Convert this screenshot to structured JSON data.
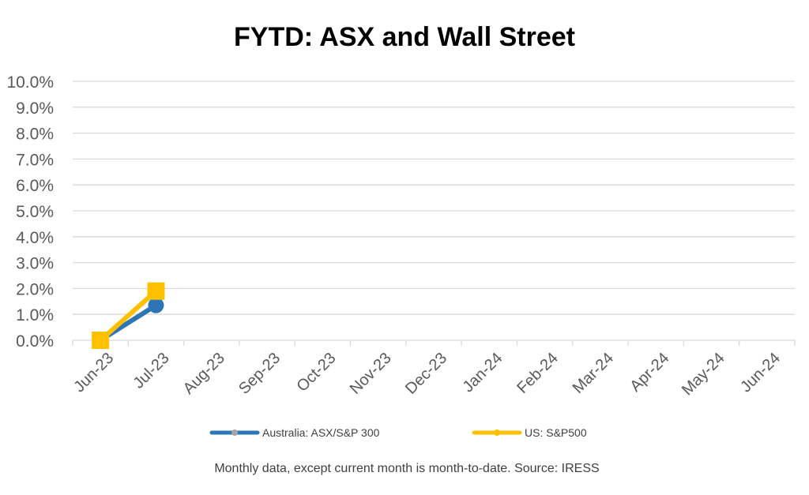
{
  "chart_data": {
    "type": "line",
    "title": "FYTD: ASX and Wall Street",
    "xlabel": "",
    "ylabel": "",
    "categories": [
      "Jun-23",
      "Jul-23",
      "Aug-23",
      "Sep-23",
      "Oct-23",
      "Nov-23",
      "Dec-23",
      "Jan-24",
      "Feb-24",
      "Mar-24",
      "Apr-24",
      "May-24",
      "Jun-24"
    ],
    "y_ticks": [
      "0.0%",
      "1.0%",
      "2.0%",
      "3.0%",
      "4.0%",
      "5.0%",
      "6.0%",
      "7.0%",
      "8.0%",
      "9.0%",
      "10.0%"
    ],
    "ylim": [
      0,
      10
    ],
    "y_unit": "%",
    "grid": true,
    "legend_position": "bottom",
    "series": [
      {
        "name": "Australia: ASX/S&P 300",
        "color": "#2E75B6",
        "marker": "circle",
        "values": [
          0.0,
          1.35,
          null,
          null,
          null,
          null,
          null,
          null,
          null,
          null,
          null,
          null,
          null
        ]
      },
      {
        "name": "US: S&P500",
        "color": "#FFC000",
        "marker": "square",
        "values": [
          0.0,
          1.9,
          null,
          null,
          null,
          null,
          null,
          null,
          null,
          null,
          null,
          null,
          null
        ]
      }
    ],
    "footnote": "Monthly data, except current month is month-to-date.  Source: IRESS"
  }
}
